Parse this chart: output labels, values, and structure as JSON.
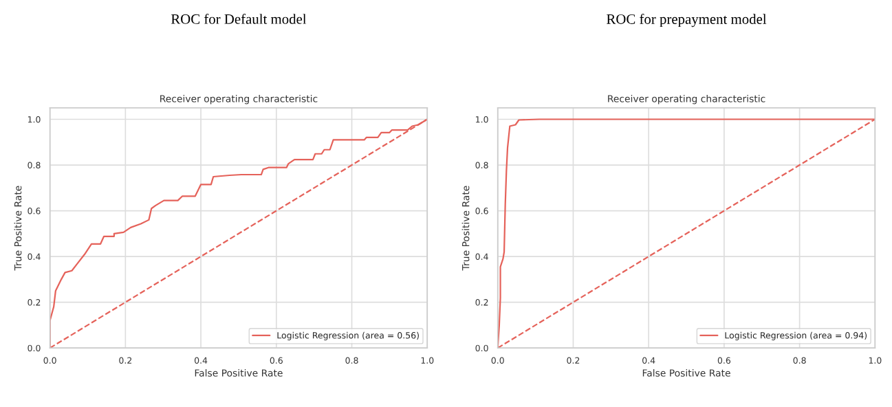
{
  "chart_data": [
    {
      "type": "line",
      "subtitle": "ROC for Default model",
      "title": "Receiver operating characteristic",
      "xlabel": "False Positive Rate",
      "ylabel": "True Positive Rate",
      "xlim": [
        0,
        1
      ],
      "ylim": [
        0,
        1.05
      ],
      "xticks": [
        {
          "value": 0,
          "label": "0.0"
        },
        {
          "value": 0.2,
          "label": "0.2"
        },
        {
          "value": 0.4,
          "label": "0.4"
        },
        {
          "value": 0.6,
          "label": "0.6"
        },
        {
          "value": 0.8,
          "label": "0.8"
        },
        {
          "value": 1,
          "label": "1.0"
        }
      ],
      "yticks": [
        {
          "value": 0,
          "label": "0.0"
        },
        {
          "value": 0.2,
          "label": "0.2"
        },
        {
          "value": 0.4,
          "label": "0.4"
        },
        {
          "value": 0.6,
          "label": "0.6"
        },
        {
          "value": 0.8,
          "label": "0.8"
        },
        {
          "value": 1,
          "label": "1.0"
        }
      ],
      "grid": true,
      "legend": "bottom right",
      "series": [
        {
          "name": "Logistic Regression (area = 0.56)",
          "color": "#e5625a",
          "line_style": "solid",
          "x": [
            0,
            0,
            0.01,
            0.015,
            0.03,
            0.04,
            0.058,
            0.073,
            0.092,
            0.11,
            0.134,
            0.143,
            0.17,
            0.17,
            0.195,
            0.214,
            0.241,
            0.262,
            0.269,
            0.28,
            0.302,
            0.339,
            0.351,
            0.385,
            0.4,
            0.427,
            0.433,
            0.476,
            0.507,
            0.56,
            0.565,
            0.579,
            0.627,
            0.632,
            0.648,
            0.697,
            0.703,
            0.72,
            0.727,
            0.742,
            0.751,
            0.833,
            0.839,
            0.869,
            0.878,
            0.9,
            0.906,
            0.948,
            0.96,
            0.976,
            1.0
          ],
          "values": [
            0,
            0.12,
            0.18,
            0.25,
            0.3,
            0.33,
            0.338,
            0.37,
            0.41,
            0.455,
            0.455,
            0.488,
            0.488,
            0.5,
            0.506,
            0.527,
            0.543,
            0.56,
            0.61,
            0.623,
            0.645,
            0.645,
            0.664,
            0.664,
            0.715,
            0.715,
            0.749,
            0.755,
            0.758,
            0.758,
            0.781,
            0.789,
            0.789,
            0.806,
            0.824,
            0.824,
            0.849,
            0.849,
            0.867,
            0.867,
            0.91,
            0.91,
            0.921,
            0.921,
            0.942,
            0.942,
            0.953,
            0.953,
            0.97,
            0.976,
            1.0
          ]
        },
        {
          "color": "#e5625a",
          "line_style": "dashed",
          "x": [
            0,
            1
          ],
          "values": [
            0,
            1
          ]
        }
      ]
    },
    {
      "type": "line",
      "subtitle": "ROC for prepayment model",
      "title": "Receiver operating characteristic",
      "xlabel": "False Positive Rate",
      "ylabel": "True Positive Rate",
      "xlim": [
        0,
        1
      ],
      "ylim": [
        0,
        1.05
      ],
      "xticks": [
        {
          "value": 0,
          "label": "0.0"
        },
        {
          "value": 0.2,
          "label": "0.2"
        },
        {
          "value": 0.4,
          "label": "0.4"
        },
        {
          "value": 0.6,
          "label": "0.6"
        },
        {
          "value": 0.8,
          "label": "0.8"
        },
        {
          "value": 1,
          "label": "1.0"
        }
      ],
      "yticks": [
        {
          "value": 0,
          "label": "0.0"
        },
        {
          "value": 0.2,
          "label": "0.2"
        },
        {
          "value": 0.4,
          "label": "0.4"
        },
        {
          "value": 0.6,
          "label": "0.6"
        },
        {
          "value": 0.8,
          "label": "0.8"
        },
        {
          "value": 1,
          "label": "1.0"
        }
      ],
      "grid": true,
      "legend": "bottom right",
      "series": [
        {
          "name": "Logistic Regression (area = 0.94)",
          "color": "#e5625a",
          "line_style": "solid",
          "x": [
            0,
            0.004,
            0.007,
            0.007,
            0.014,
            0.017,
            0.02,
            0.023,
            0.026,
            0.032,
            0.047,
            0.056,
            0.11,
            0.46,
            1.0
          ],
          "values": [
            0,
            0.1,
            0.22,
            0.355,
            0.39,
            0.42,
            0.63,
            0.775,
            0.875,
            0.97,
            0.976,
            0.997,
            1.0,
            1.0,
            1.0
          ]
        },
        {
          "color": "#e5625a",
          "line_style": "dashed",
          "x": [
            0,
            1
          ],
          "values": [
            0,
            1
          ]
        }
      ]
    }
  ]
}
